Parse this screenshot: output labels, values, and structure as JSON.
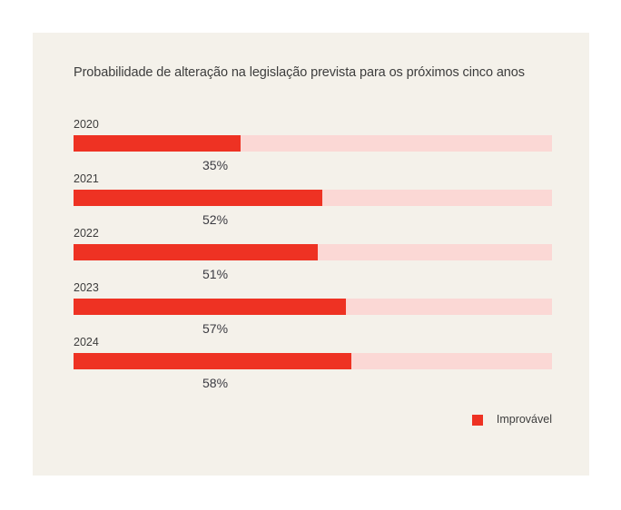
{
  "chart_data": {
    "type": "bar",
    "orientation": "horizontal",
    "title": "Probabilidade de alteração na legislação prevista para os próximos cinco anos",
    "categories": [
      "2020",
      "2021",
      "2022",
      "2023",
      "2024"
    ],
    "values": [
      35,
      52,
      51,
      57,
      58
    ],
    "value_labels": [
      "35%",
      "52%",
      "51%",
      "57%",
      "58%"
    ],
    "series_name": "Improvável",
    "xlim": [
      0,
      100
    ],
    "grid": false,
    "legend_position": "bottom-right",
    "colors": {
      "fill": "#ee3223",
      "track": "#fbd8d5",
      "card_background": "#f4f1ea",
      "page_background": "#ffffff",
      "text": "#3d3d3d"
    }
  }
}
